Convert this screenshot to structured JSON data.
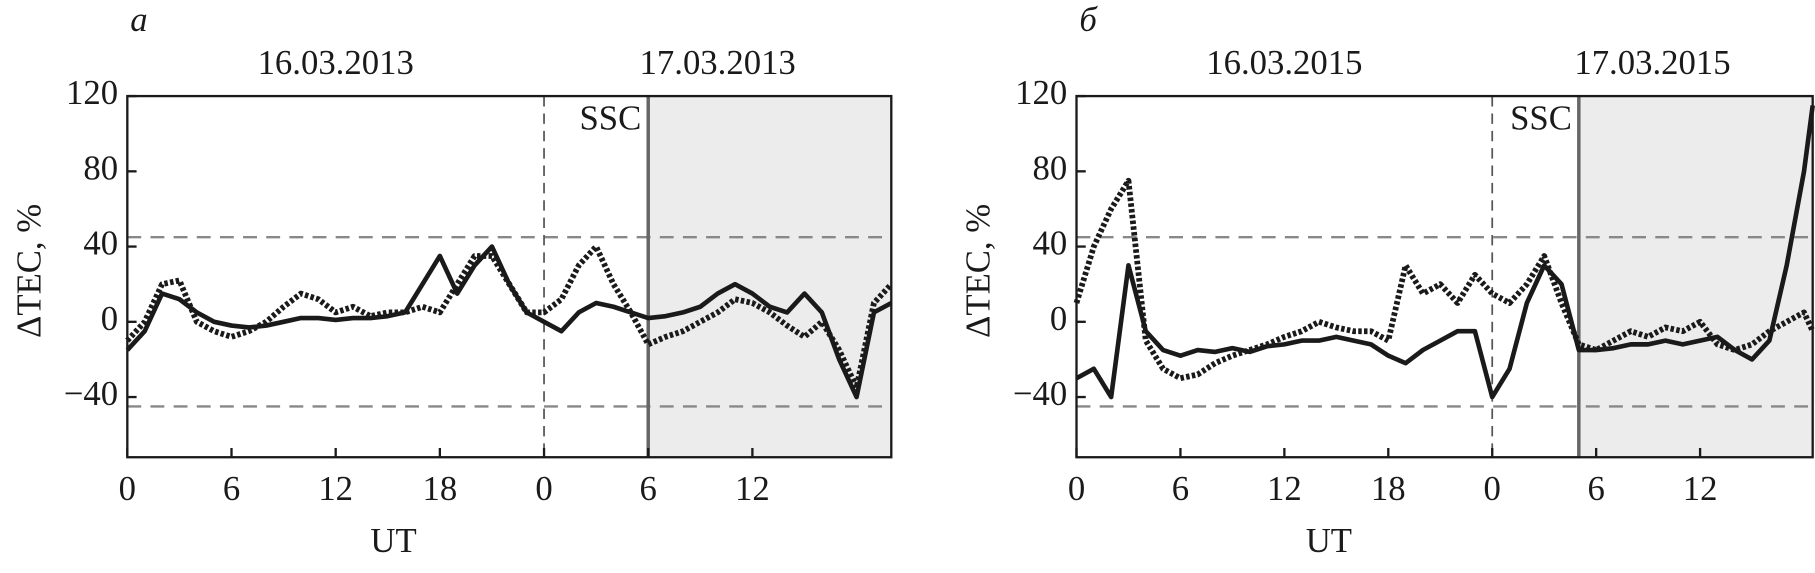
{
  "chart_data": [
    {
      "type": "line",
      "panel_label": "а",
      "date_labels": [
        "16.03.2013",
        "17.03.2013"
      ],
      "annotation": "SSC",
      "xlabel": "UT",
      "ylabel": "ΔTEC, %",
      "xlim": [
        0,
        44
      ],
      "ylim": [
        -72,
        120
      ],
      "xticks": [
        0,
        6,
        12,
        18,
        {
          "value": 24,
          "label": "0"
        },
        {
          "value": 30,
          "label": "6"
        },
        {
          "value": 36,
          "label": "12"
        }
      ],
      "yticks": [
        {
          "value": -40,
          "label": "−40"
        },
        0,
        40,
        80,
        120
      ],
      "ssc_x": 24,
      "shade_from": 30,
      "shade_color": "#ececec",
      "hlines": [
        45,
        -45
      ],
      "x": [
        0,
        1,
        2,
        3,
        4,
        5,
        6,
        7,
        8,
        9,
        10,
        11,
        12,
        13,
        14,
        15,
        16,
        17,
        18,
        19,
        20,
        21,
        22,
        23,
        24,
        25,
        26,
        27,
        28,
        29,
        30,
        31,
        32,
        33,
        34,
        35,
        36,
        37,
        38,
        39,
        40,
        41,
        42,
        43,
        44
      ],
      "series": [
        {
          "style": "solid",
          "color": "#1a1a1a",
          "values": [
            -15,
            -5,
            15,
            12,
            5,
            0,
            -2,
            -3,
            -2,
            0,
            2,
            2,
            1,
            2,
            2,
            3,
            5,
            20,
            35,
            15,
            30,
            40,
            20,
            5,
            0,
            -5,
            5,
            10,
            8,
            5,
            2,
            3,
            5,
            8,
            15,
            20,
            15,
            8,
            5,
            15,
            5,
            -20,
            -40,
            5,
            10
          ]
        },
        {
          "style": "dotted",
          "color": "#1a1a1a",
          "values": [
            -10,
            0,
            20,
            22,
            0,
            -5,
            -8,
            -5,
            0,
            8,
            15,
            12,
            5,
            8,
            3,
            5,
            5,
            8,
            5,
            20,
            35,
            35,
            20,
            5,
            5,
            12,
            30,
            40,
            20,
            5,
            -12,
            -8,
            -5,
            0,
            5,
            12,
            10,
            5,
            -2,
            -8,
            0,
            -15,
            -35,
            10,
            20
          ]
        }
      ]
    },
    {
      "type": "line",
      "panel_label": "б",
      "date_labels": [
        "16.03.2015",
        "17.03.2015"
      ],
      "annotation": "SSC",
      "xlabel": "UT",
      "ylabel": "ΔTEC, %",
      "xlim": [
        0,
        42.5
      ],
      "ylim": [
        -72,
        120
      ],
      "xticks": [
        0,
        6,
        12,
        18,
        {
          "value": 24,
          "label": "0"
        },
        {
          "value": 30,
          "label": "6"
        },
        {
          "value": 36,
          "label": "12"
        }
      ],
      "yticks": [
        {
          "value": -40,
          "label": "−40"
        },
        0,
        40,
        80,
        120
      ],
      "ssc_x": 24,
      "shade_from": 29,
      "shade_color": "#ececec",
      "hlines": [
        45,
        -45
      ],
      "x": [
        0,
        1,
        2,
        3,
        4,
        5,
        6,
        7,
        8,
        9,
        10,
        11,
        12,
        13,
        14,
        15,
        16,
        17,
        18,
        19,
        20,
        21,
        22,
        23,
        24,
        25,
        26,
        27,
        28,
        29,
        30,
        31,
        32,
        33,
        34,
        35,
        36,
        37,
        38,
        39,
        40,
        41,
        42,
        42.5
      ],
      "series": [
        {
          "style": "solid",
          "color": "#1a1a1a",
          "values": [
            -30,
            -25,
            -40,
            30,
            -5,
            -15,
            -18,
            -15,
            -16,
            -14,
            -16,
            -13,
            -12,
            -10,
            -10,
            -8,
            -10,
            -12,
            -18,
            -22,
            -15,
            -10,
            -5,
            -5,
            -40,
            -25,
            10,
            30,
            20,
            -15,
            -15,
            -14,
            -12,
            -12,
            -10,
            -12,
            -10,
            -8,
            -15,
            -20,
            -10,
            30,
            80,
            115
          ]
        },
        {
          "style": "dotted",
          "color": "#1a1a1a",
          "values": [
            10,
            40,
            60,
            75,
            -10,
            -25,
            -30,
            -28,
            -22,
            -18,
            -15,
            -12,
            -8,
            -5,
            0,
            -3,
            -5,
            -5,
            -10,
            30,
            15,
            20,
            10,
            25,
            15,
            10,
            20,
            35,
            10,
            -12,
            -15,
            -10,
            -5,
            -8,
            -3,
            -5,
            0,
            -12,
            -15,
            -12,
            -5,
            0,
            5,
            -5
          ]
        }
      ]
    }
  ]
}
